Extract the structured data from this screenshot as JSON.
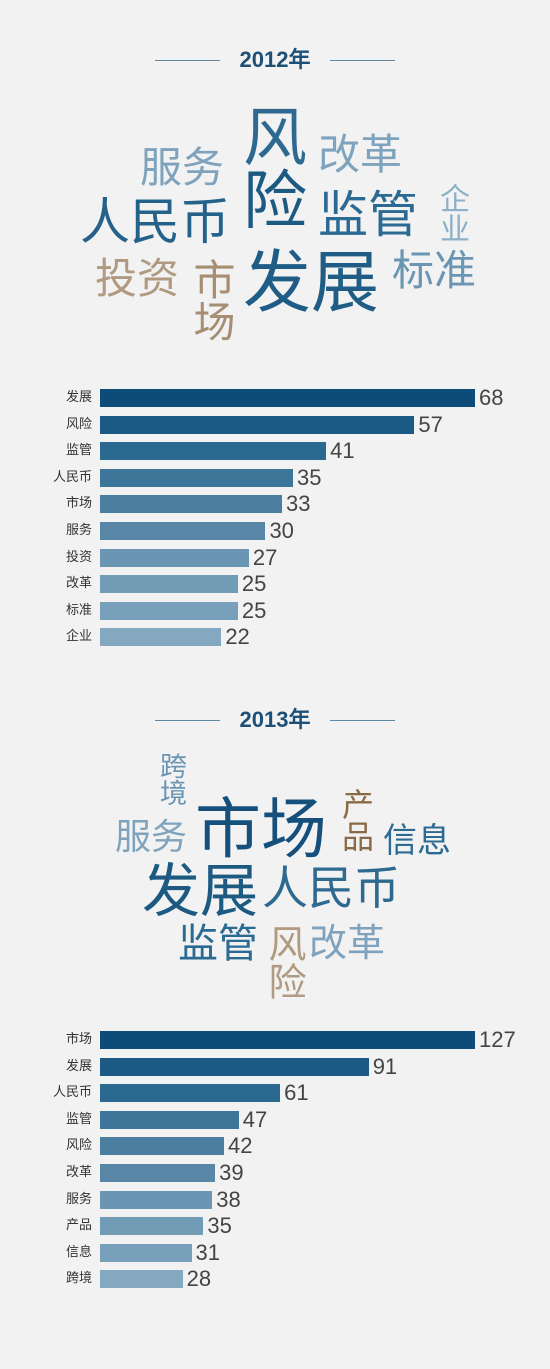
{
  "sections": [
    {
      "title": "2012年",
      "cloud": [
        {
          "text": "风",
          "color": "#2e6a8f"
        },
        {
          "text": "服务",
          "color": "#7fa3bc"
        },
        {
          "text": "改革",
          "color": "#7fa3bc"
        },
        {
          "text": "险",
          "color": "#1c5a82"
        },
        {
          "text": "监管",
          "color": "#2b6a92"
        },
        {
          "text": "人民币",
          "color": "#24628a"
        },
        {
          "text": "企业",
          "color": "#8db0c6"
        },
        {
          "text": "投资",
          "color": "#b09a80"
        },
        {
          "text": "市场",
          "color": "#a58e72"
        },
        {
          "text": "发展",
          "color": "#1f5d86"
        },
        {
          "text": "标准",
          "color": "#6a95b3"
        }
      ],
      "chart_data": {
        "type": "bar",
        "orientation": "horizontal",
        "categories": [
          "发展",
          "风险",
          "监管",
          "人民币",
          "市场",
          "服务",
          "投资",
          "改革",
          "标准",
          "企业"
        ],
        "values": [
          68,
          57,
          41,
          35,
          33,
          30,
          27,
          25,
          25,
          22
        ],
        "colors": [
          "#0d4b78",
          "#1a5a85",
          "#2a6990",
          "#3d7699",
          "#4c7f9f",
          "#5886a6",
          "#6a95b3",
          "#729bb6",
          "#79a0ba",
          "#84a8c0"
        ]
      }
    },
    {
      "title": "2013年",
      "cloud": [
        {
          "text": "跨境",
          "color": "#6a95b3"
        },
        {
          "text": "市场",
          "color": "#15507c"
        },
        {
          "text": "产品",
          "color": "#8a6a45"
        },
        {
          "text": "服务",
          "color": "#7fa3bc"
        },
        {
          "text": "信息",
          "color": "#2b6a92"
        },
        {
          "text": "发展",
          "color": "#1c5a82"
        },
        {
          "text": "人民币",
          "color": "#2e6a8f"
        },
        {
          "text": "监管",
          "color": "#2b6a92"
        },
        {
          "text": "风险",
          "color": "#b09a80"
        },
        {
          "text": "改革",
          "color": "#7fa3bc"
        }
      ],
      "chart_data": {
        "type": "bar",
        "orientation": "horizontal",
        "categories": [
          "市场",
          "发展",
          "人民币",
          "监管",
          "风险",
          "改革",
          "服务",
          "产品",
          "信息",
          "跨境"
        ],
        "values": [
          127,
          91,
          61,
          47,
          42,
          39,
          38,
          35,
          31,
          28
        ],
        "colors": [
          "#0d4b78",
          "#1a5a85",
          "#2a6990",
          "#3d7699",
          "#4c7f9f",
          "#5886a6",
          "#6a95b3",
          "#729bb6",
          "#79a0ba",
          "#84a8c0"
        ]
      }
    }
  ]
}
